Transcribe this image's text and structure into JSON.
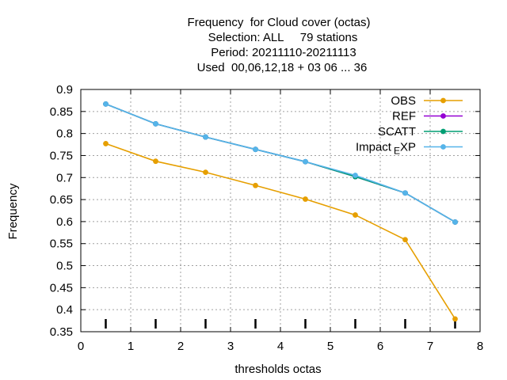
{
  "chart_data": {
    "type": "line",
    "title_lines": [
      "Frequency  for Cloud cover (octas)",
      "Selection: ALL     79 stations",
      "Period: 20211110-20211113",
      "Used  00,06,12,18 + 03 06 ... 36"
    ],
    "xlabel": "thresholds octas",
    "ylabel": "Frequency",
    "xlim": [
      0,
      8
    ],
    "ylim": [
      0.35,
      0.9
    ],
    "x_ticks": [
      "0",
      "1",
      "2",
      "3",
      "4",
      "5",
      "6",
      "7",
      "8"
    ],
    "y_ticks": [
      "0.35",
      "0.4",
      "0.45",
      "0.5",
      "0.55",
      "0.6",
      "0.65",
      "0.7",
      "0.75",
      "0.8",
      "0.85",
      "0.9"
    ],
    "grid": true,
    "legend_position": "top-right",
    "x": [
      0.5,
      1.5,
      2.5,
      3.5,
      4.5,
      5.5,
      6.5,
      7.5
    ],
    "series": [
      {
        "name": "OBS",
        "color": "#e69f00",
        "values": [
          0.777,
          0.737,
          0.712,
          0.682,
          0.651,
          0.615,
          0.559,
          0.379
        ]
      },
      {
        "name": "REF",
        "color": "#9400d3",
        "values": [
          0.867,
          0.822,
          0.792,
          0.764,
          0.736,
          0.702,
          0.665,
          0.599
        ]
      },
      {
        "name": "SCATT",
        "color": "#009e73",
        "values": [
          0.867,
          0.822,
          0.792,
          0.764,
          0.736,
          0.702,
          0.665,
          0.599
        ]
      },
      {
        "name": "Impact_EXP",
        "legend_main": "Impact",
        "legend_sub": "E",
        "legend_tail": "XP",
        "color": "#56b4e9",
        "values": [
          0.867,
          0.822,
          0.792,
          0.764,
          0.736,
          0.705,
          0.665,
          0.599
        ]
      }
    ]
  }
}
